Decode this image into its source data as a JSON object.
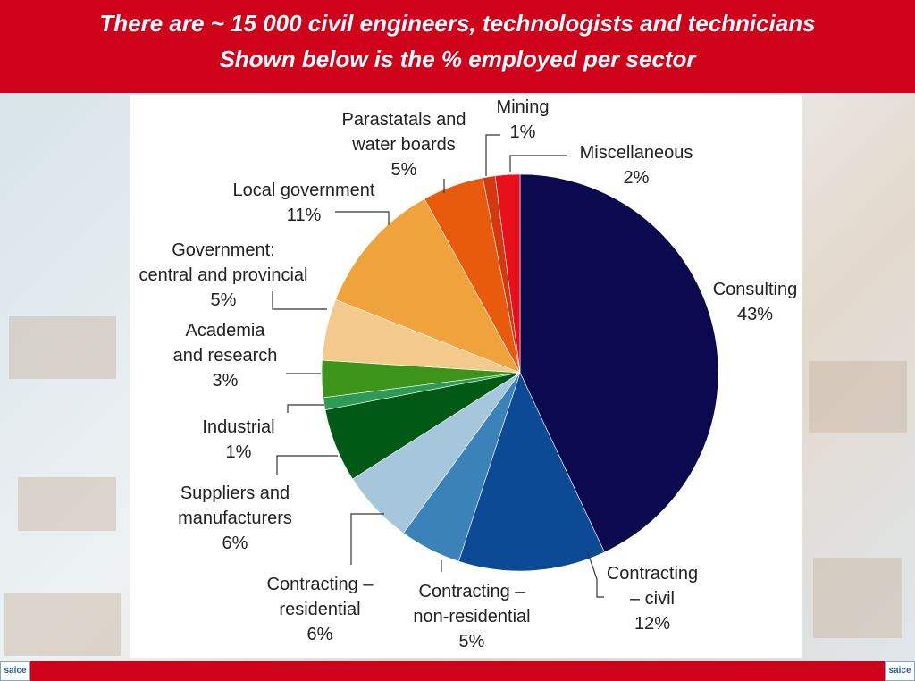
{
  "header": {
    "line1": "There are ~ 15 000 civil engineers, technologists and technicians",
    "line2": "Shown below is the % employed per sector"
  },
  "logo_text": "saice",
  "chart_data": {
    "type": "pie",
    "unit": "%",
    "slices": [
      {
        "label": [
          "Consulting"
        ],
        "value": 43,
        "value_text": "43%",
        "color": "#0b0a4f"
      },
      {
        "label": [
          "Contracting",
          "– civil"
        ],
        "value": 12,
        "value_text": "12%",
        "color": "#0c4a96"
      },
      {
        "label": [
          "Contracting –",
          "non-residential"
        ],
        "value": 5,
        "value_text": "5%",
        "color": "#3b82b8"
      },
      {
        "label": [
          "Contracting –",
          "residential"
        ],
        "value": 6,
        "value_text": "6%",
        "color": "#a6c6dc"
      },
      {
        "label": [
          "Suppliers and",
          "manufacturers"
        ],
        "value": 6,
        "value_text": "6%",
        "color": "#005a16"
      },
      {
        "label": [
          "Industrial"
        ],
        "value": 1,
        "value_text": "1%",
        "color": "#2f9a56"
      },
      {
        "label": [
          "Academia",
          "and research"
        ],
        "value": 3,
        "value_text": "3%",
        "color": "#3c9419"
      },
      {
        "label": [
          "Government:",
          "central and provincial"
        ],
        "value": 5,
        "value_text": "5%",
        "color": "#f4c98c"
      },
      {
        "label": [
          "Local government"
        ],
        "value": 11,
        "value_text": "11%",
        "color": "#f0a33c"
      },
      {
        "label": [
          "Parastatals and",
          "water boards"
        ],
        "value": 5,
        "value_text": "5%",
        "color": "#e85a0c"
      },
      {
        "label": [
          "Mining"
        ],
        "value": 1,
        "value_text": "1%",
        "color": "#d4380f"
      },
      {
        "label": [
          "Miscellaneous"
        ],
        "value": 2,
        "value_text": "2%",
        "color": "#e8101a"
      }
    ]
  }
}
